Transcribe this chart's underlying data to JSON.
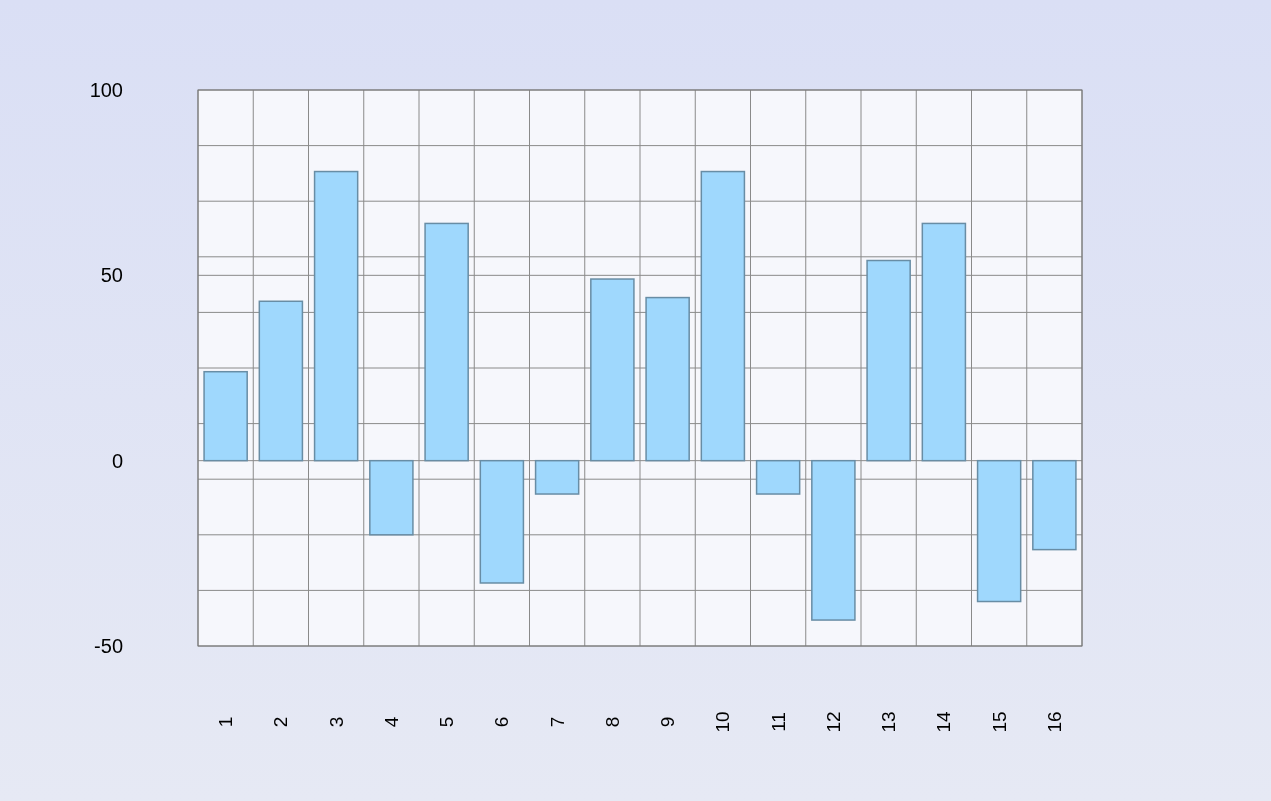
{
  "chart_data": {
    "type": "bar",
    "categories": [
      "1",
      "2",
      "3",
      "4",
      "5",
      "6",
      "7",
      "8",
      "9",
      "10",
      "11",
      "12",
      "13",
      "14",
      "15",
      "16"
    ],
    "values": [
      24,
      43,
      78,
      -20,
      64,
      -33,
      -9,
      49,
      44,
      78,
      -9,
      -43,
      54,
      64,
      -38,
      -24
    ],
    "color": "#9fd8fd",
    "ylim": [
      -50,
      100
    ],
    "yticks": [
      -50,
      {
        "value": -35,
        "label": null
      },
      {
        "value": -20,
        "label": null
      },
      {
        "value": -5,
        "label": null
      },
      0,
      {
        "value": 10,
        "label": null
      },
      {
        "value": 25,
        "label": null
      },
      {
        "value": 40,
        "label": null
      },
      50,
      {
        "value": 55,
        "label": null
      },
      {
        "value": 70,
        "label": null
      },
      {
        "value": 85,
        "label": null
      },
      100
    ],
    "grid": true
  }
}
